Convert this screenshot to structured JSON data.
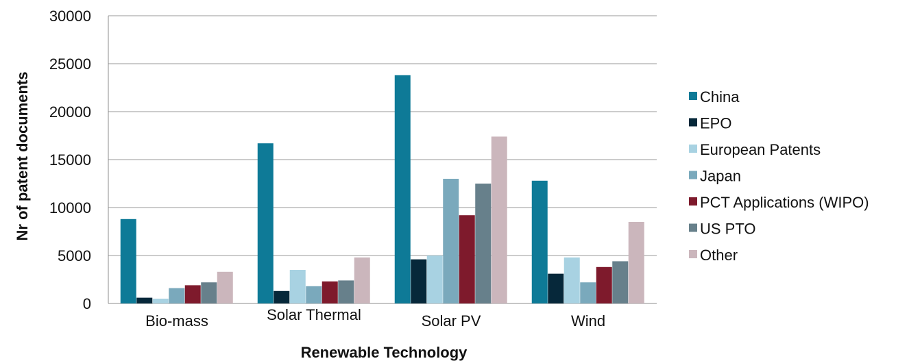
{
  "chart_data": {
    "type": "bar",
    "title": "",
    "xlabel": "Renewable Technology",
    "ylabel": "Nr of patent documents",
    "ylim": [
      0,
      30000
    ],
    "yticks": [
      0,
      5000,
      10000,
      15000,
      20000,
      25000,
      30000
    ],
    "grid": true,
    "legend_position": "right",
    "categories": [
      "Bio-mass",
      "Solar Thermal",
      "Solar PV",
      "Wind"
    ],
    "series": [
      {
        "name": "China",
        "color": "#0e7a97",
        "values": [
          8800,
          16700,
          23800,
          12800
        ]
      },
      {
        "name": "EPO",
        "color": "#06283a",
        "values": [
          600,
          1300,
          4600,
          3100
        ]
      },
      {
        "name": "European Patents",
        "color": "#a8d2e2",
        "values": [
          500,
          3500,
          5000,
          4800
        ]
      },
      {
        "name": "Japan",
        "color": "#7aa9bc",
        "values": [
          1600,
          1800,
          13000,
          2200
        ]
      },
      {
        "name": "PCT Applications (WIPO)",
        "color": "#7e1a2c",
        "values": [
          1900,
          2300,
          9200,
          3800
        ]
      },
      {
        "name": "US PTO",
        "color": "#67808b",
        "values": [
          2200,
          2400,
          12500,
          4400
        ]
      },
      {
        "name": "Other",
        "color": "#cbb6bc",
        "values": [
          3300,
          4800,
          17400,
          8500
        ]
      }
    ]
  }
}
